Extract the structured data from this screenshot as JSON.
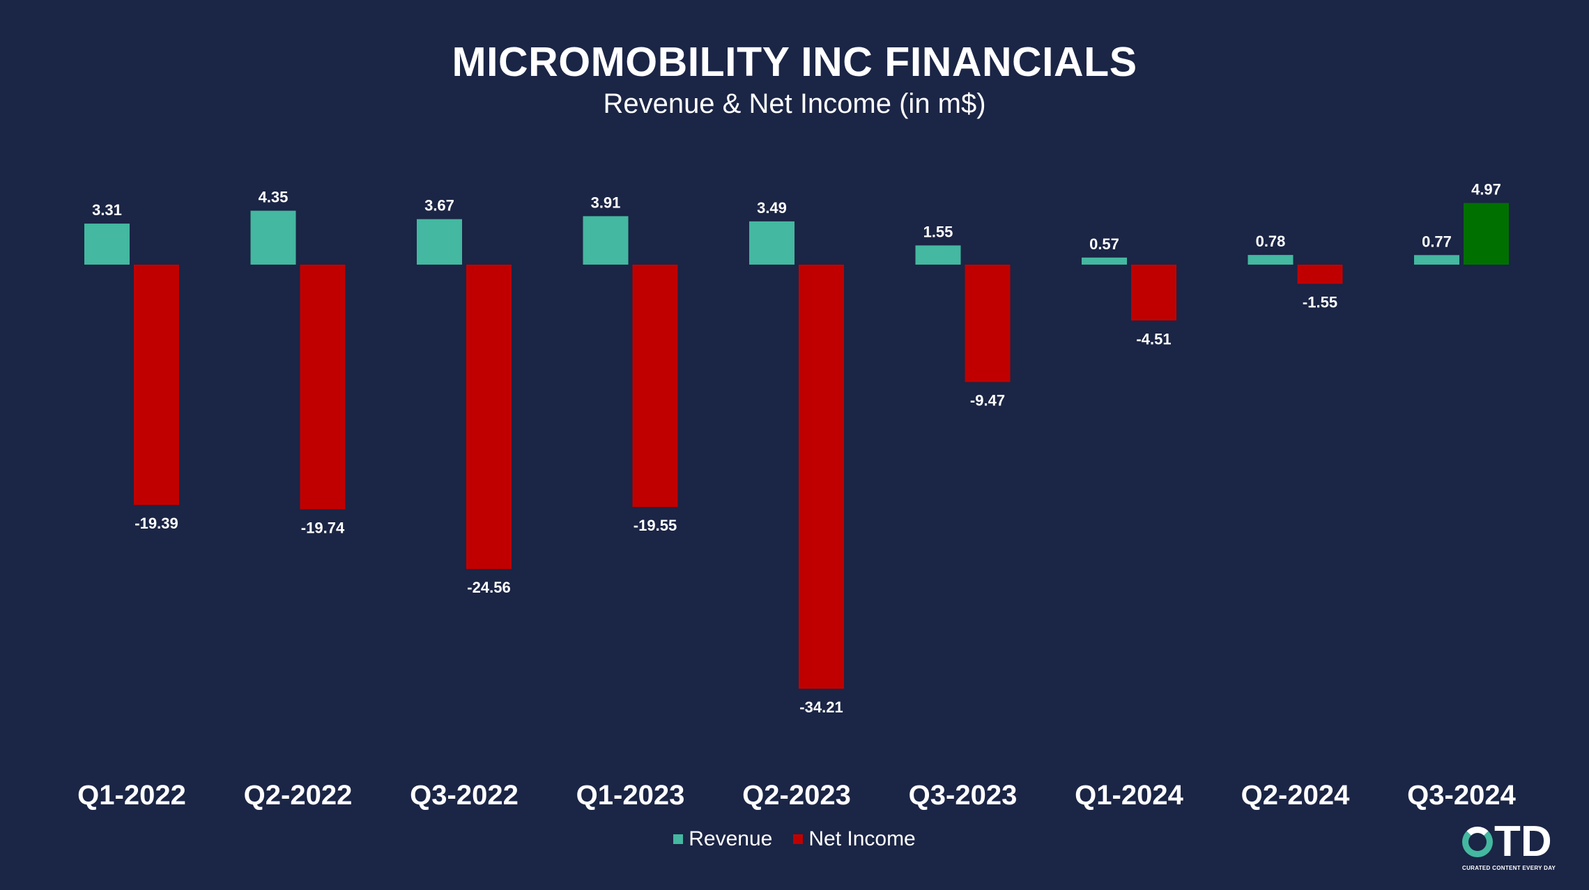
{
  "title": "MICROMOBILITY INC FINANCIALS",
  "subtitle": "Revenue & Net Income (in m$)",
  "colors": {
    "background": "#1b2545",
    "revenue": "#44b8a0",
    "net_income_negative": "#c00000",
    "net_income_positive": "#007000"
  },
  "chart_data": {
    "type": "bar",
    "title": "MICROMOBILITY INC FINANCIALS",
    "subtitle": "Revenue & Net Income (in m$)",
    "categories": [
      "Q1-2022",
      "Q2-2022",
      "Q3-2022",
      "Q1-2023",
      "Q2-2023",
      "Q3-2023",
      "Q1-2024",
      "Q2-2024",
      "Q3-2024"
    ],
    "series": [
      {
        "name": "Revenue",
        "values": [
          3.31,
          4.35,
          3.67,
          3.91,
          3.49,
          1.55,
          0.57,
          0.78,
          0.77
        ],
        "color": "#44b8a0"
      },
      {
        "name": "Net Income",
        "values": [
          -19.39,
          -19.74,
          -24.56,
          -19.55,
          -34.21,
          -9.47,
          -4.51,
          -1.55,
          4.97
        ],
        "color": "#c00000",
        "positive_color": "#007000"
      }
    ],
    "labels": {
      "Revenue": [
        "3.31",
        "4.35",
        "3.67",
        "3.91",
        "3.49",
        "1.55",
        "0.57",
        "0.78",
        "0.77"
      ],
      "Net Income": [
        "-19.39",
        "-19.74",
        "-24.56",
        "-19.55",
        "-34.21",
        "-9.47",
        "-4.51",
        "-1.55",
        "4.97"
      ]
    },
    "xlabel": "",
    "ylabel": "",
    "ylim": [
      -34.21,
      4.97
    ],
    "grid": false,
    "legend": "bottom-center"
  },
  "legend": [
    {
      "label": "Revenue",
      "color": "#44b8a0"
    },
    {
      "label": "Net Income",
      "color": "#c00000"
    }
  ],
  "logo": {
    "text": "TD",
    "tagline": "CURATED CONTENT EVERY DAY"
  }
}
